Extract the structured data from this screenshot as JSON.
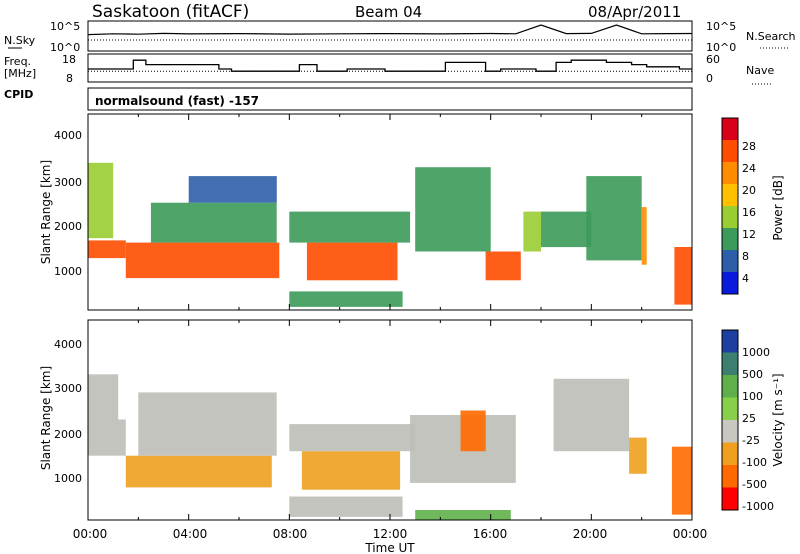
{
  "header": {
    "station": "Saskatoon (fitACF)",
    "beam": "Beam 04",
    "date": "08/Apr/2011"
  },
  "noise_panel": {
    "left_label": "N.Sky",
    "right_label": "N.Search",
    "left_ticks": [
      "10^5",
      "10^0"
    ],
    "right_ticks": [
      "10^5",
      "10^0"
    ]
  },
  "freq_panel": {
    "left_label_1": "Freq.",
    "left_label_2": "[MHz]",
    "right_label": "Nave",
    "left_ticks": [
      "18",
      "8"
    ],
    "right_ticks": [
      "60",
      "0"
    ]
  },
  "cpid": {
    "label": "CPID",
    "value": "normalsound (fast) -157"
  },
  "panels": {
    "power": {
      "ylabel": "Slant Range [km]",
      "yticks": [
        "4000",
        "3000",
        "2000",
        "1000"
      ],
      "colorbar_label": "Power [dB]",
      "colorbar_ticks": [
        "28",
        "24",
        "20",
        "16",
        "12",
        "8",
        "4"
      ]
    },
    "velocity": {
      "ylabel": "Slant Range [km]",
      "yticks": [
        "4000",
        "3000",
        "2000",
        "1000"
      ],
      "colorbar_label": "Velocity [m s⁻¹]",
      "colorbar_ticks": [
        "1000",
        "500",
        "100",
        "25",
        "-25",
        "-100",
        "-500",
        "-1000"
      ]
    }
  },
  "xaxis": {
    "label": "Time UT",
    "ticks": [
      "00:00",
      "04:00",
      "08:00",
      "12:00",
      "16:00",
      "20:00",
      "00:00"
    ]
  },
  "colors": {
    "power_scale": [
      "#d9001a",
      "#ff4d00",
      "#ff8c00",
      "#ffc000",
      "#9acd32",
      "#3c9a5a",
      "#2d5fa8",
      "#0a1adc"
    ],
    "velocity_scale": [
      "#1e3fa0",
      "#3c7f6e",
      "#5fb04a",
      "#88d04a",
      "#c8c8c0",
      "#f0a020",
      "#ff6a00",
      "#ff0000"
    ],
    "ground_scatter": "#bebeb8"
  },
  "chart_data": [
    {
      "type": "line",
      "title": "",
      "series": [
        {
          "name": "N.Sky",
          "x": [
            0,
            1,
            2,
            3,
            4,
            6,
            8,
            10,
            12,
            14,
            16,
            17,
            18,
            19,
            20,
            21,
            22,
            23,
            24
          ],
          "y": [
            1000,
            1500,
            1200,
            1800,
            1400,
            1600,
            1300,
            1500,
            1600,
            1400,
            1700,
            1500,
            100000,
            1600,
            1800,
            100000,
            1500,
            1600,
            1700
          ]
        }
      ],
      "xlim": [
        0,
        24
      ],
      "ylim": [
        1,
        100000
      ],
      "scale": "log"
    },
    {
      "type": "line",
      "title": "",
      "series": [
        {
          "name": "Freq",
          "x": [
            0,
            0.6,
            1.8,
            2.3,
            5.2,
            5.7,
            7.7,
            8.3,
            8.4,
            9.1,
            10.3,
            11.8,
            13.3,
            14.2,
            15.8,
            16.4,
            17.8,
            18.6,
            19.2,
            19.8,
            20.6,
            21.2,
            21.6,
            22.2,
            22.8,
            23.5
          ],
          "y": [
            13,
            13,
            17,
            15,
            13,
            12,
            12,
            12,
            15,
            12,
            13,
            12,
            12,
            16,
            12,
            13,
            12,
            16,
            17,
            17,
            16,
            16,
            15,
            14,
            14,
            13
          ]
        }
      ],
      "xlim": [
        0,
        24
      ],
      "ylim": [
        8,
        18
      ],
      "reference_line": 12
    },
    {
      "type": "heatmap",
      "title": "",
      "xlabel": "Time UT",
      "ylabel": "Slant Range [km]",
      "xlim": [
        0,
        24
      ],
      "ylim": [
        180,
        4600
      ],
      "colorbar_label": "Power [dB]",
      "colorbar_ticks": [
        28,
        24,
        20,
        16,
        12,
        8,
        4
      ],
      "patches": [
        {
          "t0": 0.0,
          "t1": 1.5,
          "r0": 1350,
          "r1": 1750,
          "level": 26
        },
        {
          "t0": 0.0,
          "t1": 1.0,
          "r0": 1800,
          "r1": 3500,
          "level": 14
        },
        {
          "t0": 1.5,
          "t1": 7.6,
          "r0": 900,
          "r1": 1700,
          "level": 24
        },
        {
          "t0": 2.5,
          "t1": 7.5,
          "r0": 1700,
          "r1": 2600,
          "level": 12
        },
        {
          "t0": 4.0,
          "t1": 7.5,
          "r0": 2600,
          "r1": 3200,
          "level": 8
        },
        {
          "t0": 8.7,
          "t1": 12.3,
          "r0": 850,
          "r1": 1700,
          "level": 26
        },
        {
          "t0": 8.0,
          "t1": 12.8,
          "r0": 1700,
          "r1": 2400,
          "level": 12
        },
        {
          "t0": 8.0,
          "t1": 12.5,
          "r0": 250,
          "r1": 600,
          "level": 10
        },
        {
          "t0": 13.0,
          "t1": 16.0,
          "r0": 1500,
          "r1": 3400,
          "level": 9
        },
        {
          "t0": 15.8,
          "t1": 17.2,
          "r0": 850,
          "r1": 1500,
          "level": 26
        },
        {
          "t0": 17.3,
          "t1": 18.0,
          "r0": 1500,
          "r1": 2400,
          "level": 14
        },
        {
          "t0": 18.0,
          "t1": 20.0,
          "r0": 1600,
          "r1": 2400,
          "level": 9
        },
        {
          "t0": 19.8,
          "t1": 22.0,
          "r0": 1300,
          "r1": 3200,
          "level": 12
        },
        {
          "t0": 22.0,
          "t1": 22.2,
          "r0": 1200,
          "r1": 2500,
          "level": 22
        },
        {
          "t0": 23.3,
          "t1": 24.0,
          "r0": 300,
          "r1": 1600,
          "level": 26
        }
      ]
    },
    {
      "type": "heatmap",
      "title": "",
      "xlabel": "Time UT",
      "ylabel": "Slant Range [km]",
      "xlim": [
        0,
        24
      ],
      "ylim": [
        180,
        4600
      ],
      "colorbar_label": "Velocity [m s⁻¹]",
      "colorbar_ticks": [
        1000,
        500,
        100,
        25,
        -25,
        -100,
        -500,
        -1000
      ],
      "patches": [
        {
          "t0": 0.0,
          "t1": 1.5,
          "r0": 1600,
          "r1": 2400,
          "level": 0
        },
        {
          "t0": 0.0,
          "t1": 1.2,
          "r0": 2400,
          "r1": 3400,
          "level": 0
        },
        {
          "t0": 1.5,
          "t1": 7.3,
          "r0": 900,
          "r1": 1600,
          "level": -150
        },
        {
          "t0": 2.0,
          "t1": 7.5,
          "r0": 1600,
          "r1": 3000,
          "level": 0
        },
        {
          "t0": 8.5,
          "t1": 12.4,
          "r0": 850,
          "r1": 1700,
          "level": -180
        },
        {
          "t0": 8.0,
          "t1": 13.0,
          "r0": 1700,
          "r1": 2300,
          "level": 0
        },
        {
          "t0": 8.0,
          "t1": 12.5,
          "r0": 250,
          "r1": 700,
          "level": 0
        },
        {
          "t0": 12.8,
          "t1": 17.0,
          "r0": 1000,
          "r1": 2500,
          "level": 0
        },
        {
          "t0": 14.8,
          "t1": 15.8,
          "r0": 1700,
          "r1": 2600,
          "level": -700
        },
        {
          "t0": 13.0,
          "t1": 16.8,
          "r0": 180,
          "r1": 400,
          "level": 60
        },
        {
          "t0": 18.5,
          "t1": 21.5,
          "r0": 1700,
          "r1": 3300,
          "level": 0
        },
        {
          "t0": 21.5,
          "t1": 22.2,
          "r0": 1200,
          "r1": 2000,
          "level": -150
        },
        {
          "t0": 23.2,
          "t1": 24.0,
          "r0": 300,
          "r1": 1800,
          "level": -300
        }
      ]
    }
  ]
}
